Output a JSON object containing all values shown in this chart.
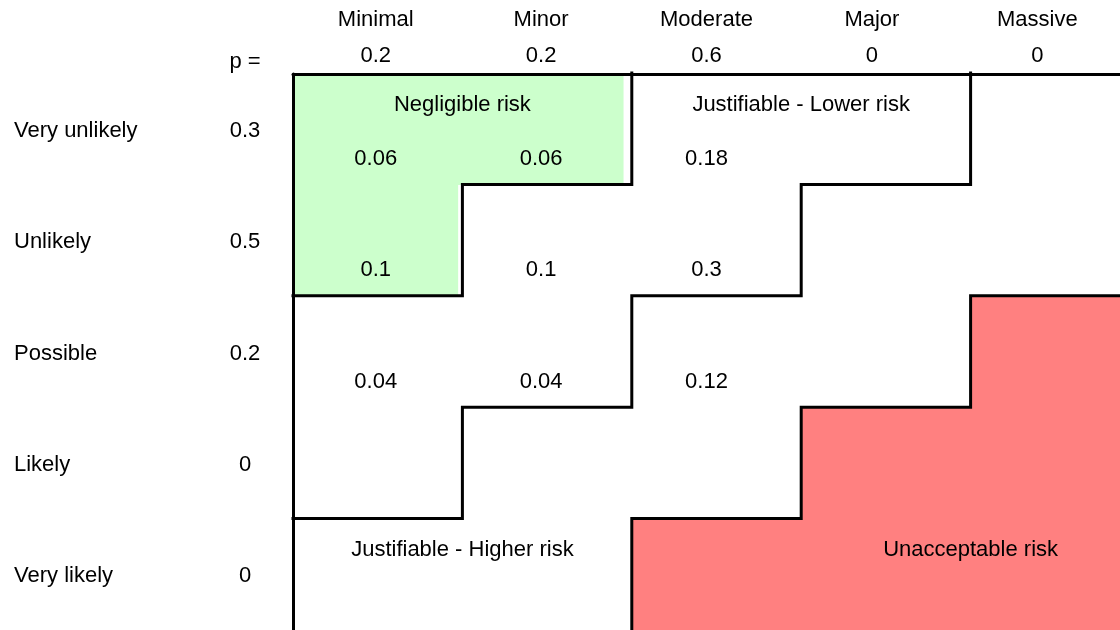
{
  "chart_data": {
    "type": "heatmap",
    "categories": [
      "Minimal\n0.2",
      "Minor\n0.2",
      "Moderate\n0.6",
      "Major\n0",
      "Massive\n0"
    ],
    "y_categories": [
      "Very unlikely",
      "Unlikely",
      "Possible",
      "Likely",
      "Very likely"
    ],
    "y2_categories": [
      "0.3",
      "0.5",
      "0.2",
      "0",
      "0"
    ],
    "cells": [
      [
        0.06,
        0.06,
        0.18,
        null,
        null
      ],
      [
        0.1,
        0.1,
        0.3,
        null,
        null
      ],
      [
        0.04,
        0.04,
        0.12,
        null,
        null
      ],
      [
        null,
        null,
        null,
        null,
        null
      ],
      [
        null,
        null,
        null,
        null,
        null
      ]
    ],
    "colors": [
      [
        "#ccffcc",
        "#ccffcc",
        "#ffffff",
        "#ffffff",
        "#ffffff"
      ],
      [
        "#ccffcc",
        "#ffffff",
        "#ffffff",
        "#ffffff",
        "#ffffff"
      ],
      [
        "#ffffff",
        "#ffffff",
        "#ffffff",
        "#ffffff",
        "#ff8080"
      ],
      [
        "#ffffff",
        "#ffffff",
        "#ffffff",
        "#ff8080",
        "#ff8080"
      ],
      [
        "#ffffff",
        "#ffffff",
        "#ff8080",
        "#ff8080",
        "#ff8080"
      ]
    ],
    "data_labels": true,
    "annotations": [
      "p =",
      "Negligible risk",
      "Justifiable - Lower risk",
      "Justifiable - Higher risk",
      "Unacceptable risk"
    ]
  }
}
